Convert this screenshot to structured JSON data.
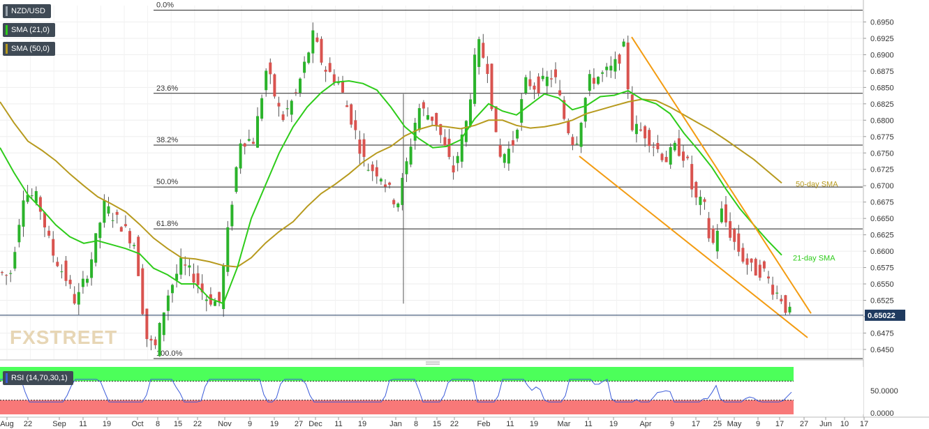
{
  "app": {
    "symbol": "NZD/USD",
    "indicators": [
      {
        "label": "SMA (21,0)",
        "color": "#2ecc1a"
      },
      {
        "label": "SMA (50,0)",
        "color": "#b79a1e"
      }
    ],
    "rsi_label": "RSI (14,70,30,1)",
    "watermark": "FXSTREET"
  },
  "chart_data": {
    "type": "candlestick",
    "title": "",
    "price_axis": {
      "ylim": [
        0.6435,
        0.6975
      ],
      "ticks": [
        "0.6950",
        "0.6925",
        "0.6900",
        "0.6875",
        "0.6850",
        "0.6825",
        "0.6800",
        "0.6775",
        "0.6750",
        "0.6725",
        "0.6700",
        "0.6675",
        "0.6650",
        "0.6625",
        "0.6600",
        "0.6575",
        "0.6550",
        "0.6525",
        "0.6500",
        "0.6475",
        "0.6450"
      ],
      "last_price": "0.65022"
    },
    "x_axis_labels": [
      "Aug",
      "22",
      "Sep",
      "11",
      "19",
      "Oct",
      "8",
      "15",
      "22",
      "Nov",
      "9",
      "19",
      "27",
      "Dec",
      "11",
      "19",
      "Jan",
      "8",
      "15",
      "22",
      "Feb",
      "11",
      "19",
      "Mar",
      "11",
      "19",
      "Apr",
      "9",
      "17",
      "25",
      "May",
      "9",
      "17",
      "27",
      "Jun",
      "10",
      "17"
    ],
    "fibonacci_levels": [
      {
        "label": "0.0%",
        "price": 0.6968
      },
      {
        "label": "23.6%",
        "price": 0.6841
      },
      {
        "label": "38.2%",
        "price": 0.6762
      },
      {
        "label": "50.0%",
        "price": 0.6698
      },
      {
        "label": "61.8%",
        "price": 0.6634
      },
      {
        "label": "100.0%",
        "price": 0.6427
      }
    ],
    "sma_21": {
      "label": "21-day SMA",
      "points": [
        [
          0,
          0.6758
        ],
        [
          20,
          0.672
        ],
        [
          40,
          0.6686
        ],
        [
          60,
          0.6664
        ],
        [
          80,
          0.664
        ],
        [
          100,
          0.6622
        ],
        [
          120,
          0.6612
        ],
        [
          140,
          0.6616
        ],
        [
          160,
          0.661
        ],
        [
          180,
          0.6604
        ],
        [
          200,
          0.6596
        ],
        [
          220,
          0.6574
        ],
        [
          240,
          0.6564
        ],
        [
          260,
          0.655
        ],
        [
          280,
          0.655
        ],
        [
          300,
          0.6528
        ],
        [
          320,
          0.652
        ],
        [
          340,
          0.6575
        ],
        [
          360,
          0.665
        ],
        [
          380,
          0.67
        ],
        [
          400,
          0.675
        ],
        [
          420,
          0.679
        ],
        [
          440,
          0.682
        ],
        [
          460,
          0.6842
        ],
        [
          480,
          0.6858
        ],
        [
          500,
          0.686
        ],
        [
          520,
          0.6856
        ],
        [
          540,
          0.6846
        ],
        [
          560,
          0.682
        ],
        [
          580,
          0.679
        ],
        [
          600,
          0.6772
        ],
        [
          620,
          0.6758
        ],
        [
          640,
          0.676
        ],
        [
          660,
          0.677
        ],
        [
          680,
          0.6802
        ],
        [
          700,
          0.6825
        ],
        [
          720,
          0.6814
        ],
        [
          740,
          0.6808
        ],
        [
          760,
          0.6824
        ],
        [
          780,
          0.684
        ],
        [
          800,
          0.6834
        ],
        [
          820,
          0.6816
        ],
        [
          840,
          0.6822
        ],
        [
          860,
          0.6836
        ],
        [
          880,
          0.6838
        ],
        [
          900,
          0.6845
        ],
        [
          920,
          0.6832
        ],
        [
          940,
          0.6825
        ],
        [
          960,
          0.681
        ],
        [
          980,
          0.678
        ],
        [
          1000,
          0.6755
        ],
        [
          1020,
          0.6728
        ],
        [
          1040,
          0.6695
        ],
        [
          1060,
          0.6665
        ],
        [
          1080,
          0.664
        ],
        [
          1100,
          0.6616
        ],
        [
          1120,
          0.6594
        ]
      ]
    },
    "sma_50": {
      "label": "50-day SMA",
      "points": [
        [
          0,
          0.6828
        ],
        [
          20,
          0.6796
        ],
        [
          40,
          0.6768
        ],
        [
          60,
          0.6754
        ],
        [
          80,
          0.6738
        ],
        [
          100,
          0.6718
        ],
        [
          120,
          0.67
        ],
        [
          140,
          0.6683
        ],
        [
          160,
          0.6672
        ],
        [
          180,
          0.666
        ],
        [
          200,
          0.6641
        ],
        [
          220,
          0.662
        ],
        [
          240,
          0.6604
        ],
        [
          260,
          0.659
        ],
        [
          280,
          0.6588
        ],
        [
          300,
          0.6584
        ],
        [
          320,
          0.6578
        ],
        [
          340,
          0.6576
        ],
        [
          360,
          0.659
        ],
        [
          380,
          0.6612
        ],
        [
          400,
          0.663
        ],
        [
          420,
          0.6645
        ],
        [
          440,
          0.6668
        ],
        [
          460,
          0.6688
        ],
        [
          480,
          0.6702
        ],
        [
          500,
          0.6718
        ],
        [
          520,
          0.6736
        ],
        [
          540,
          0.675
        ],
        [
          560,
          0.676
        ],
        [
          580,
          0.6776
        ],
        [
          600,
          0.6786
        ],
        [
          620,
          0.6792
        ],
        [
          640,
          0.679
        ],
        [
          660,
          0.6787
        ],
        [
          680,
          0.6792
        ],
        [
          700,
          0.68
        ],
        [
          720,
          0.68
        ],
        [
          740,
          0.6792
        ],
        [
          760,
          0.6788
        ],
        [
          780,
          0.679
        ],
        [
          800,
          0.6794
        ],
        [
          820,
          0.68
        ],
        [
          840,
          0.681
        ],
        [
          860,
          0.6816
        ],
        [
          880,
          0.6822
        ],
        [
          900,
          0.6828
        ],
        [
          920,
          0.6832
        ],
        [
          940,
          0.683
        ],
        [
          960,
          0.682
        ],
        [
          980,
          0.6808
        ],
        [
          1000,
          0.6796
        ],
        [
          1020,
          0.6784
        ],
        [
          1040,
          0.677
        ],
        [
          1060,
          0.6755
        ],
        [
          1080,
          0.674
        ],
        [
          1100,
          0.6722
        ],
        [
          1120,
          0.6704
        ]
      ]
    },
    "trendlines": [
      {
        "name": "upper",
        "from": [
          905,
          0.6927
        ],
        "to": [
          1162,
          0.6505
        ]
      },
      {
        "name": "lower",
        "from": [
          830,
          0.6745
        ],
        "to": [
          1157,
          0.6468
        ]
      }
    ],
    "rsi": {
      "ticks": [
        "50.0000",
        "0.0000"
      ],
      "overbought": 70,
      "oversold": 30
    }
  }
}
